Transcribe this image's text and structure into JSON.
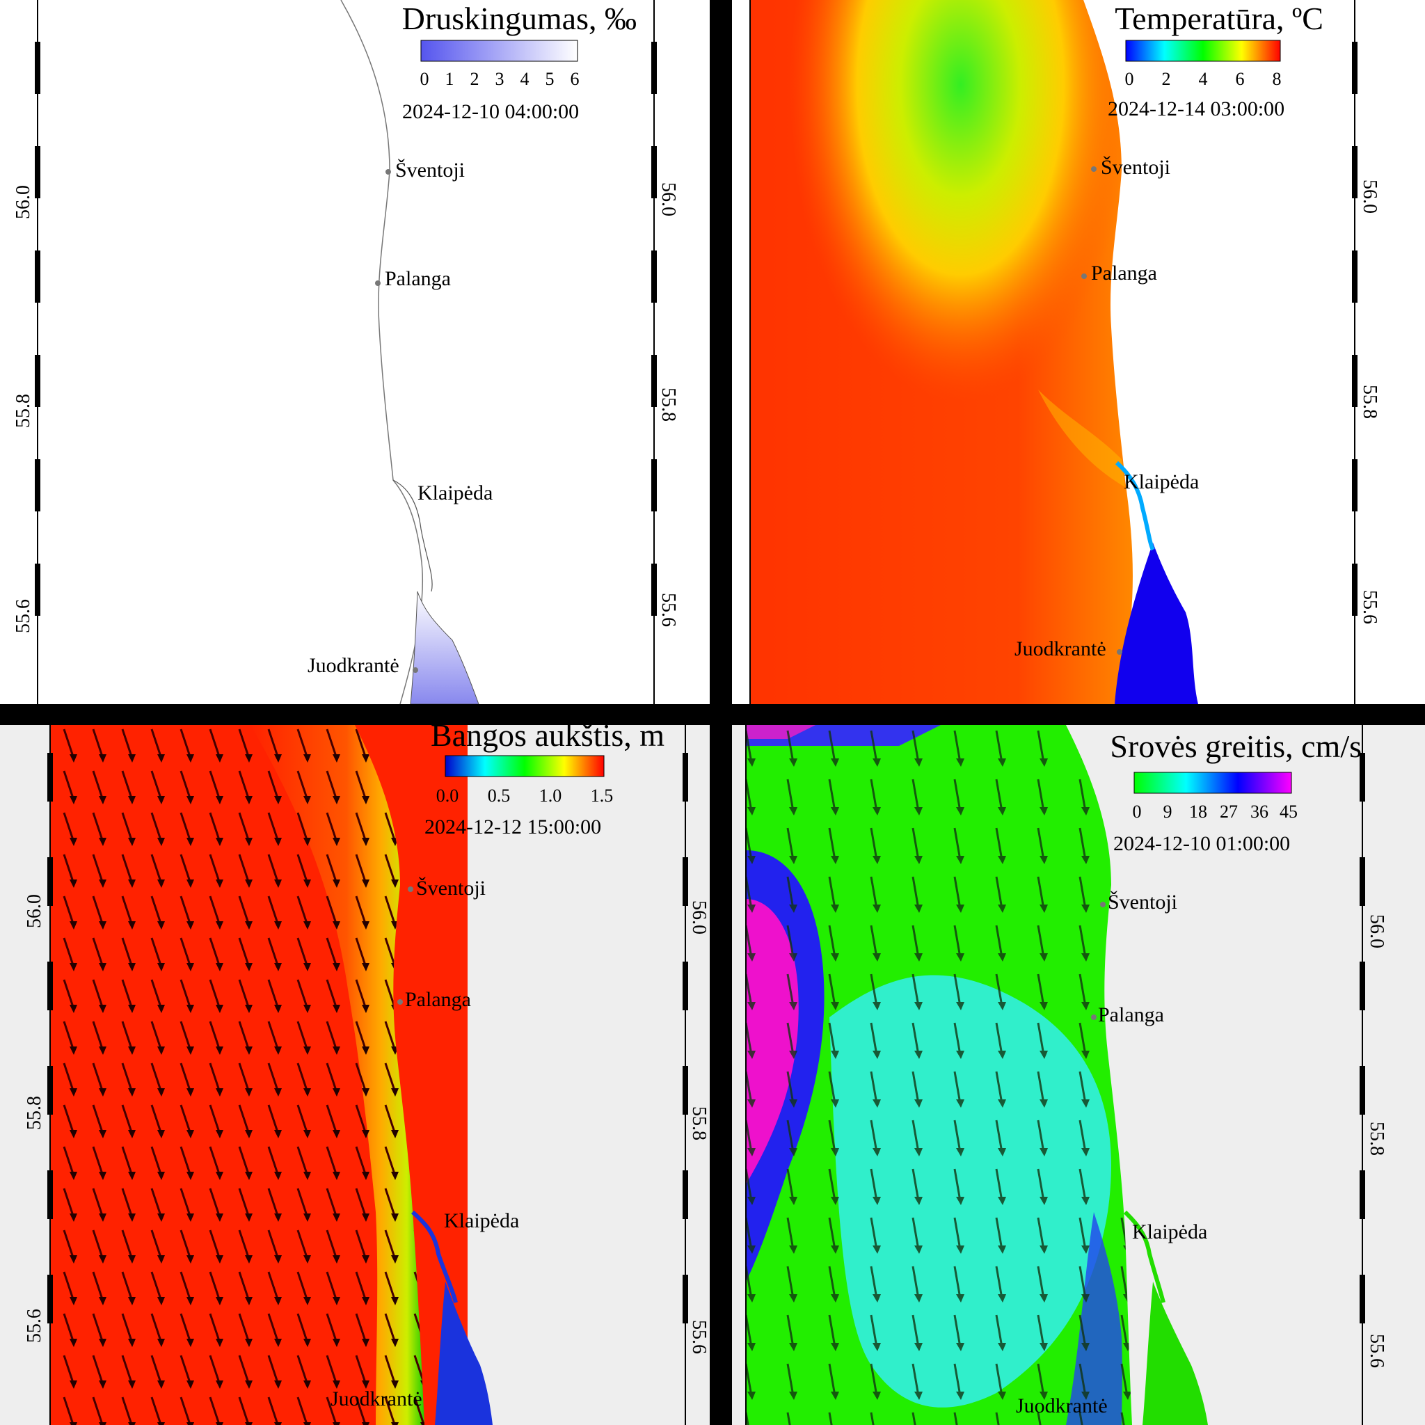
{
  "panels": {
    "salinity": {
      "title": "Druskingumas, ‰",
      "ticks": [
        "0",
        "1",
        "2",
        "3",
        "4",
        "5",
        "6"
      ],
      "date": "2024-12-10  04:00:00"
    },
    "temperature": {
      "title": "Temperatūra, ºC",
      "ticks": [
        "0",
        "2",
        "4",
        "6",
        "8"
      ],
      "date": "2024-12-14  03:00:00"
    },
    "waves": {
      "title": "Bangos aukštis, m",
      "ticks": [
        "0.0",
        "0.5",
        "1.0",
        "1.5"
      ],
      "date": "2024-12-12  15:00:00"
    },
    "current": {
      "title": "Srovės greitis, cm/s",
      "ticks": [
        "0",
        "9",
        "18",
        "27",
        "36",
        "45"
      ],
      "date": "2024-12-10  01:00:00"
    }
  },
  "places": {
    "sventoji": "Šventoji",
    "palanga": "Palanga",
    "klaipeda": "Klaipėda",
    "juodkrante": "Juodkrantė"
  },
  "latitudes": {
    "l56_0": "56.0",
    "l55_8": "55.8",
    "l55_6": "55.6"
  },
  "colors": {
    "salinity_scale": [
      "#5555ee",
      "#ffffff"
    ],
    "temperature_scale": [
      "#0000ff",
      "#00ffff",
      "#00ff00",
      "#ffff00",
      "#ff0000"
    ],
    "wave_scale": [
      "#0000cc",
      "#00ffff",
      "#00ff00",
      "#ffff00",
      "#ff0000"
    ],
    "current_scale": [
      "#00ff00",
      "#00ffff",
      "#0000ff",
      "#ff00ff"
    ]
  }
}
